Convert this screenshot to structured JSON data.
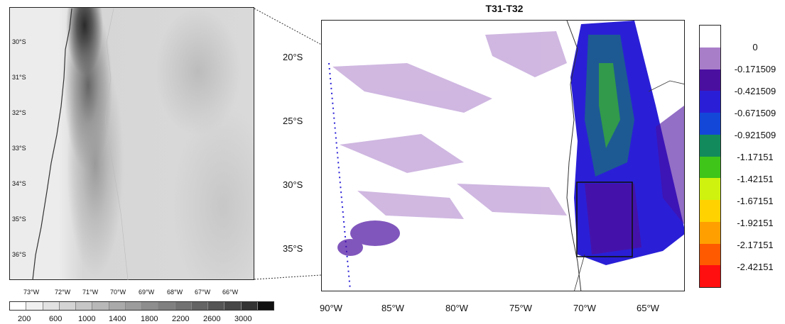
{
  "left_map": {
    "lat_labels": [
      "30°S",
      "31°S",
      "32°S",
      "33°S",
      "34°S",
      "35°S",
      "36°S"
    ],
    "lon_labels": [
      "73°W",
      "72°W",
      "71°W",
      "70°W",
      "69°W",
      "68°W",
      "67°W",
      "66°W"
    ]
  },
  "elevation_legend": {
    "labels": [
      "200",
      "600",
      "1000",
      "1400",
      "1800",
      "2200",
      "2600",
      "3000"
    ],
    "colors": [
      "#ffffff",
      "#f0f0f0",
      "#e2e2e2",
      "#d4d4d4",
      "#c6c6c6",
      "#b8b8b8",
      "#aaaaaa",
      "#9c9c9c",
      "#8e8e8e",
      "#808080",
      "#727272",
      "#646464",
      "#555555",
      "#464646",
      "#333333",
      "#111111"
    ]
  },
  "right_map": {
    "title": "T31-T32",
    "lat_labels": [
      "20°S",
      "25°S",
      "30°S",
      "35°S"
    ],
    "lon_labels": [
      "90°W",
      "85°W",
      "80°W",
      "75°W",
      "70°W",
      "65°W"
    ]
  },
  "colorbar": {
    "labels": [
      "0",
      "-0.171509",
      "-0.421509",
      "-0.671509",
      "-0.921509",
      "-1.17151",
      "-1.42151",
      "-1.67151",
      "-1.92151",
      "-2.17151",
      "-2.42151"
    ],
    "colors": [
      "#ffffff",
      "#a97ec9",
      "#4b0fa0",
      "#2a1fd6",
      "#1347d8",
      "#128a5c",
      "#3fc41a",
      "#cff20f",
      "#ffd200",
      "#ffa000",
      "#ff5a00",
      "#ff0f0f"
    ]
  }
}
